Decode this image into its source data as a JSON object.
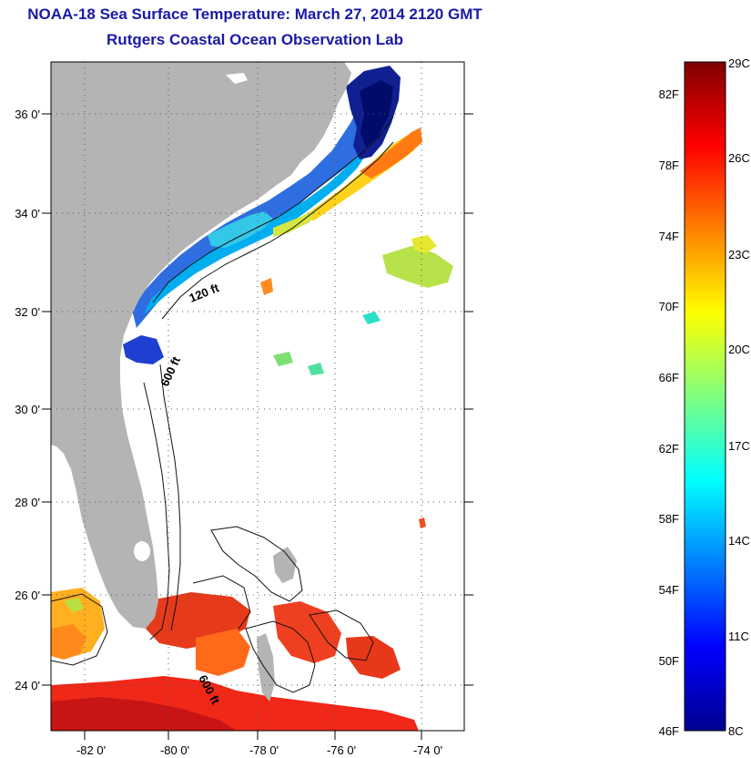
{
  "title": {
    "line1": "NOAA-18 Sea Surface Temperature:  March 27, 2014 2120 GMT",
    "line2": "Rutgers Coastal Ocean Observation Lab"
  },
  "map": {
    "lat_ticks": [
      "36 0'",
      "34 0'",
      "32 0'",
      "30 0'",
      "28 0'",
      "26 0'",
      "24 0'"
    ],
    "lon_ticks": [
      "-82 0'",
      "-80 0'",
      "-78 0'",
      "-76 0'",
      "-74 0'"
    ],
    "contour_labels": [
      "120 ft",
      "600 ft",
      "600 ft"
    ],
    "colors": {
      "land": "#b4b4b4",
      "background": "#ffffff",
      "grid": "#555555"
    }
  },
  "colorbar": {
    "fahrenheit_labels": [
      "82F",
      "78F",
      "74F",
      "70F",
      "66F",
      "62F",
      "58F",
      "54F",
      "50F",
      "46F"
    ],
    "celsius_labels": [
      "29C",
      "26C",
      "23C",
      "20C",
      "17C",
      "14C",
      "11C",
      "8C"
    ],
    "range_c": [
      8,
      29
    ],
    "colormap": "jet"
  }
}
